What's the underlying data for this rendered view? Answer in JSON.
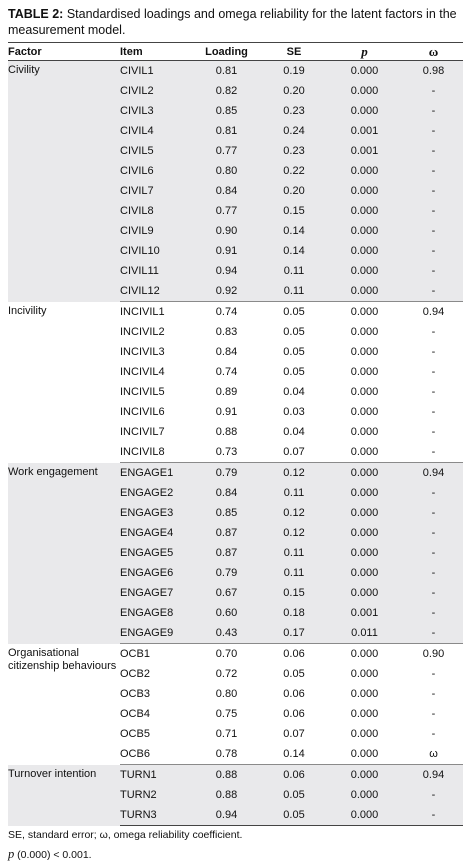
{
  "caption": {
    "label": "TABLE 2:",
    "text": "Standardised loadings and omega reliability for the latent factors in the measurement model."
  },
  "headers": [
    "Factor",
    "Item",
    "Loading",
    "SE",
    "p",
    "ω"
  ],
  "groups": [
    {
      "factor": "Civility",
      "shaded": true,
      "rows": [
        {
          "item": "CIVIL1",
          "loading": "0.81",
          "se": "0.19",
          "p": "0.000",
          "omega": "0.98"
        },
        {
          "item": "CIVIL2",
          "loading": "0.82",
          "se": "0.20",
          "p": "0.000",
          "omega": "-"
        },
        {
          "item": "CIVIL3",
          "loading": "0.85",
          "se": "0.23",
          "p": "0.000",
          "omega": "-"
        },
        {
          "item": "CIVIL4",
          "loading": "0.81",
          "se": "0.24",
          "p": "0.001",
          "omega": "-"
        },
        {
          "item": "CIVIL5",
          "loading": "0.77",
          "se": "0.23",
          "p": "0.001",
          "omega": "-"
        },
        {
          "item": "CIVIL6",
          "loading": "0.80",
          "se": "0.22",
          "p": "0.000",
          "omega": "-"
        },
        {
          "item": "CIVIL7",
          "loading": "0.84",
          "se": "0.20",
          "p": "0.000",
          "omega": "-"
        },
        {
          "item": "CIVIL8",
          "loading": "0.77",
          "se": "0.15",
          "p": "0.000",
          "omega": "-"
        },
        {
          "item": "CIVIL9",
          "loading": "0.90",
          "se": "0.14",
          "p": "0.000",
          "omega": "-"
        },
        {
          "item": "CIVIL10",
          "loading": "0.91",
          "se": "0.14",
          "p": "0.000",
          "omega": "-"
        },
        {
          "item": "CIVIL11",
          "loading": "0.94",
          "se": "0.11",
          "p": "0.000",
          "omega": "-"
        },
        {
          "item": "CIVIL12",
          "loading": "0.92",
          "se": "0.11",
          "p": "0.000",
          "omega": "-"
        }
      ]
    },
    {
      "factor": "Incivility",
      "shaded": false,
      "rows": [
        {
          "item": "INCIVIL1",
          "loading": "0.74",
          "se": "0.05",
          "p": "0.000",
          "omega": "0.94"
        },
        {
          "item": "INCIVIL2",
          "loading": "0.83",
          "se": "0.05",
          "p": "0.000",
          "omega": "-"
        },
        {
          "item": "INCIVIL3",
          "loading": "0.84",
          "se": "0.05",
          "p": "0.000",
          "omega": "-"
        },
        {
          "item": "INCIVIL4",
          "loading": "0.74",
          "se": "0.05",
          "p": "0.000",
          "omega": "-"
        },
        {
          "item": "INCIVIL5",
          "loading": "0.89",
          "se": "0.04",
          "p": "0.000",
          "omega": "-"
        },
        {
          "item": "INCIVIL6",
          "loading": "0.91",
          "se": "0.03",
          "p": "0.000",
          "omega": "-"
        },
        {
          "item": "INCIVIL7",
          "loading": "0.88",
          "se": "0.04",
          "p": "0.000",
          "omega": "-"
        },
        {
          "item": "INCIVIL8",
          "loading": "0.73",
          "se": "0.07",
          "p": "0.000",
          "omega": "-"
        }
      ]
    },
    {
      "factor": "Work engagement",
      "shaded": true,
      "rows": [
        {
          "item": "ENGAGE1",
          "loading": "0.79",
          "se": "0.12",
          "p": "0.000",
          "omega": "0.94"
        },
        {
          "item": "ENGAGE2",
          "loading": "0.84",
          "se": "0.11",
          "p": "0.000",
          "omega": "-"
        },
        {
          "item": "ENGAGE3",
          "loading": "0.85",
          "se": "0.12",
          "p": "0.000",
          "omega": "-"
        },
        {
          "item": "ENGAGE4",
          "loading": "0.87",
          "se": "0.12",
          "p": "0.000",
          "omega": "-"
        },
        {
          "item": "ENGAGE5",
          "loading": "0.87",
          "se": "0.11",
          "p": "0.000",
          "omega": "-"
        },
        {
          "item": "ENGAGE6",
          "loading": "0.79",
          "se": "0.11",
          "p": "0.000",
          "omega": "-"
        },
        {
          "item": "ENGAGE7",
          "loading": "0.67",
          "se": "0.15",
          "p": "0.000",
          "omega": "-"
        },
        {
          "item": "ENGAGE8",
          "loading": "0.60",
          "se": "0.18",
          "p": "0.001",
          "omega": "-"
        },
        {
          "item": "ENGAGE9",
          "loading": "0.43",
          "se": "0.17",
          "p": "0.011",
          "omega": "-"
        }
      ]
    },
    {
      "factor": "Organisational citizenship behaviours",
      "shaded": false,
      "rows": [
        {
          "item": "OCB1",
          "loading": "0.70",
          "se": "0.06",
          "p": "0.000",
          "omega": "0.90"
        },
        {
          "item": "OCB2",
          "loading": "0.72",
          "se": "0.05",
          "p": "0.000",
          "omega": "-"
        },
        {
          "item": "OCB3",
          "loading": "0.80",
          "se": "0.06",
          "p": "0.000",
          "omega": "-"
        },
        {
          "item": "OCB4",
          "loading": "0.75",
          "se": "0.06",
          "p": "0.000",
          "omega": "-"
        },
        {
          "item": "OCB5",
          "loading": "0.71",
          "se": "0.07",
          "p": "0.000",
          "omega": "-"
        },
        {
          "item": "OCB6",
          "loading": "0.78",
          "se": "0.14",
          "p": "0.000",
          "omega": "ω"
        }
      ]
    },
    {
      "factor": "Turnover intention",
      "shaded": true,
      "rows": [
        {
          "item": "TURN1",
          "loading": "0.88",
          "se": "0.06",
          "p": "0.000",
          "omega": "0.94"
        },
        {
          "item": "TURN2",
          "loading": "0.88",
          "se": "0.05",
          "p": "0.000",
          "omega": "-"
        },
        {
          "item": "TURN3",
          "loading": "0.94",
          "se": "0.05",
          "p": "0.000",
          "omega": "-"
        }
      ]
    }
  ],
  "notes": {
    "line1": "SE, standard error; ω, omega reliability coefficient.",
    "p_symbol": "p",
    "line2_rest": " (0.000) < 0.001."
  }
}
